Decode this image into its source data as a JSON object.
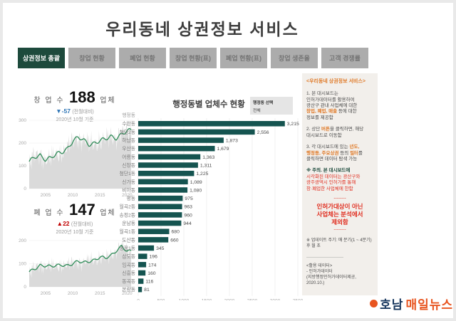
{
  "header": {
    "title": "우리동네 상권정보 서비스"
  },
  "tabs": {
    "items": [
      {
        "label": "상권정보 총괄",
        "active": true
      },
      {
        "label": "창업 현황",
        "active": false
      },
      {
        "label": "폐업 현황",
        "active": false
      },
      {
        "label": "창업 현황(표)",
        "active": false
      },
      {
        "label": "폐업 현황(표)",
        "active": false
      },
      {
        "label": "창업 생존율",
        "active": false
      },
      {
        "label": "고객 경쟁률",
        "active": false
      }
    ]
  },
  "stats": {
    "startup": {
      "prefix": "창 업 수",
      "value": "188",
      "unit": "업체",
      "delta": "▼-57",
      "delta_note": "(전월대비)",
      "as_of": "2020년 10월 기준"
    },
    "closure": {
      "prefix": "폐 업 수",
      "value": "147",
      "unit": "업체",
      "delta": "▲22",
      "delta_note": "(전월대비)",
      "as_of": "2020년 10월 기준"
    }
  },
  "filter": {
    "label": "행정동 선택",
    "value": "전체"
  },
  "chart_data": [
    {
      "id": "startup_trend",
      "type": "area-line",
      "x_range": [
        2002,
        2021
      ],
      "xticks": [
        2005,
        2010,
        2015,
        2020
      ],
      "yticks": [
        0,
        100,
        200,
        300
      ],
      "ymax": 300,
      "years": [
        2002,
        2003,
        2004,
        2005,
        2006,
        2007,
        2008,
        2009,
        2010,
        2011,
        2012,
        2013,
        2014,
        2015,
        2016,
        2017,
        2018,
        2019,
        2020
      ],
      "trend": [
        115,
        140,
        150,
        128,
        132,
        150,
        162,
        178,
        208,
        222,
        212,
        196,
        202,
        210,
        214,
        228,
        224,
        242,
        252
      ]
    },
    {
      "id": "closure_trend",
      "type": "area-line",
      "x_range": [
        2002,
        2021
      ],
      "xticks": [
        2005,
        2010,
        2015,
        2020
      ],
      "yticks": [
        0,
        100,
        200
      ],
      "ymax": 240,
      "years": [
        2002,
        2003,
        2004,
        2005,
        2006,
        2007,
        2008,
        2009,
        2010,
        2011,
        2012,
        2013,
        2014,
        2015,
        2016,
        2017,
        2018,
        2019,
        2020
      ],
      "trend": [
        62,
        78,
        95,
        92,
        86,
        90,
        96,
        94,
        100,
        108,
        104,
        112,
        118,
        128,
        122,
        134,
        158,
        178,
        152
      ]
    },
    {
      "id": "district_bars",
      "type": "bar",
      "title": "행정동별 업체수 현황",
      "axis_header": "행정동",
      "xticks": [
        0,
        500,
        1000,
        1500,
        2000,
        2500,
        3000,
        3500
      ],
      "xmax": 3500,
      "categories": [
        "수완동",
        "첨단2동",
        "하남동",
        "우산동",
        "어룡동",
        "신창동",
        "첨단1동",
        "신가동",
        "비아동",
        "평동",
        "월곡2동",
        "송정2동",
        "운남동",
        "월곡1동",
        "도산동",
        "송정1동",
        "삼도동",
        "임곡동",
        "신흥동",
        "동곡동",
        "본량동"
      ],
      "values": [
        3215,
        2556,
        1873,
        1679,
        1363,
        1311,
        1225,
        1089,
        1080,
        975,
        963,
        960,
        944,
        680,
        660,
        345,
        196,
        174,
        160,
        116,
        81
      ]
    }
  ],
  "sidebar": {
    "blocks": [
      {
        "mt": 0,
        "size": 7,
        "lines": [
          [
            {
              "t": "<우리동네 상권정보 서비스>",
              "c": "orange",
              "b": 1
            }
          ]
        ]
      },
      {
        "mt": 9,
        "lines": [
          [
            {
              "t": "1. 본 대시보드는",
              "c": "dark"
            }
          ],
          [
            {
              "t": "인허가데이터를 활용하여",
              "c": "dark"
            }
          ],
          [
            {
              "t": "광산구 관내 사업체에 대한",
              "c": "dark"
            }
          ],
          [
            {
              "t": "창업, 폐업, 매출",
              "c": "orange",
              "b": 1
            },
            {
              "t": " 등에 대한",
              "c": "dark"
            }
          ],
          [
            {
              "t": "정보를 제공함",
              "c": "dark"
            }
          ]
        ]
      },
      {
        "mt": 8,
        "lines": [
          [
            {
              "t": "2. 상단 ",
              "c": "dark"
            },
            {
              "t": "버튼",
              "c": "orange",
              "b": 1
            },
            {
              "t": "을 클릭하면, 해당",
              "c": "dark"
            }
          ],
          [
            {
              "t": "대시보드로 이동함",
              "c": "dark"
            }
          ]
        ]
      },
      {
        "mt": 8,
        "lines": [
          [
            {
              "t": "3. 각 대시보드에 있는 ",
              "c": "dark"
            },
            {
              "t": "년도,",
              "c": "orange",
              "b": 1
            }
          ],
          [
            {
              "t": "행정동, 주요상권",
              "c": "orange",
              "b": 1
            },
            {
              "t": " 등의 ",
              "c": "dark"
            },
            {
              "t": "필터",
              "c": "orange",
              "b": 1
            },
            {
              "t": "를",
              "c": "dark"
            }
          ],
          [
            {
              "t": "클릭하면 데이터 탐색 가능",
              "c": "dark"
            }
          ]
        ]
      },
      {
        "mt": 8,
        "lines": [
          [
            {
              "t": "※ 주의. 본 대시보드에",
              "c": "green",
              "b": 1
            }
          ],
          [
            {
              "t": "시각화된 데이터는 광산구와",
              "c": "red"
            }
          ],
          [
            {
              "t": "광주광역시 인허가를 통해",
              "c": "red"
            }
          ],
          [
            {
              "t": "창·폐업한 사업체에 한함",
              "c": "red"
            }
          ]
        ]
      },
      {
        "mt": 5,
        "align": "center",
        "lines": [
          [
            {
              "t": "--------",
              "c": "red"
            }
          ]
        ]
      },
      {
        "mt": 1,
        "size": 8.5,
        "align": "center",
        "lines": [
          [
            {
              "t": "인허가대상이 아닌",
              "c": "red",
              "b": 1
            }
          ],
          [
            {
              "t": "사업체는 분석에서",
              "c": "red",
              "b": 1
            }
          ],
          [
            {
              "t": "제외함",
              "c": "red",
              "b": 1
            }
          ]
        ]
      },
      {
        "mt": 1,
        "align": "center",
        "lines": [
          [
            {
              "t": "--------",
              "c": "red"
            }
          ]
        ]
      },
      {
        "mt": 8,
        "size": 6,
        "lines": [
          [
            {
              "t": "※ 업데이트 주기: 매 분기(1 ~ 4분기)",
              "c": "dark"
            }
          ],
          [
            {
              "t": "후 월 초",
              "c": "dark"
            }
          ]
        ]
      },
      {
        "mt": 7,
        "lines": [
          [
            {
              "t": "――――――――",
              "c": "gray"
            }
          ]
        ]
      },
      {
        "mt": 5,
        "size": 6,
        "lines": [
          [
            {
              "t": "<활용 데이터>",
              "c": "dark"
            }
          ],
          [
            {
              "t": "- 인허가데이터",
              "c": "dark"
            }
          ],
          [
            {
              "t": "(지방행정인허가데이터제공,",
              "c": "dark"
            }
          ],
          [
            {
              "t": "2020.10.)",
              "c": "dark"
            }
          ]
        ]
      }
    ]
  },
  "logo": {
    "part1": "호남",
    "part2": "매일뉴스"
  },
  "colors": {
    "tab-active": "#1d4a3c",
    "tab-inactive": "#acacac",
    "tab-text": "#757575",
    "bar": "#155450",
    "line": "#2e8b57",
    "area": "#d8d8d8",
    "delta-down": "#2e75b6",
    "delta-up": "#c00000",
    "orange": "#e07b2a",
    "red": "#e02d1f",
    "green-dark": "#1d4a3c",
    "navy": "#17375e",
    "logo-orange": "#e8541f",
    "sidebar-bg": "#f2efeb"
  }
}
